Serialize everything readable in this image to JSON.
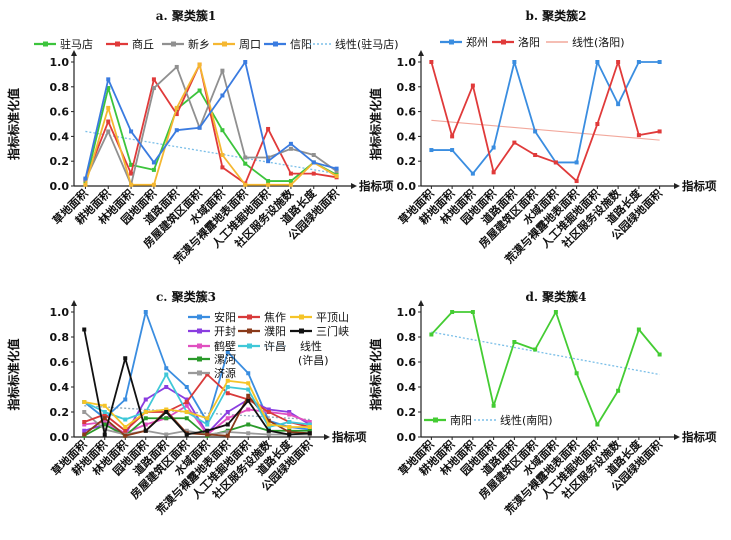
{
  "chart_data": [
    {
      "id": "a",
      "type": "line",
      "title": "a. 聚类簇1",
      "ylabel": "指标标准化值",
      "xlabel": "指标项",
      "ylim": [
        0,
        1.0
      ],
      "yticks": [
        "0.0",
        "0.2",
        "0.4",
        "0.6",
        "0.8",
        "1.0"
      ],
      "categories": [
        "草地面积",
        "耕地面积",
        "林地面积",
        "园地面积",
        "道路面积",
        "房屋建筑区面积",
        "水域面积",
        "荒漠与裸露地表面积",
        "人工堆掘地面积",
        "社区服务设施数",
        "道路长度",
        "公园绿地面积"
      ],
      "series": [
        {
          "name": "驻马店",
          "color": "#3cc43c",
          "values": [
            0.02,
            0.79,
            0.17,
            0.13,
            0.62,
            0.77,
            0.45,
            0.18,
            0.04,
            0.04,
            0.19,
            0.09
          ]
        },
        {
          "name": "商丘",
          "color": "#e03a3a",
          "values": [
            0.05,
            0.52,
            0.1,
            0.86,
            0.58,
            0.98,
            0.15,
            0.02,
            0.46,
            0.1,
            0.1,
            0.07
          ]
        },
        {
          "name": "新乡",
          "color": "#909090",
          "values": [
            0.05,
            0.44,
            0.01,
            0.79,
            0.96,
            0.47,
            0.93,
            0.23,
            0.23,
            0.3,
            0.25,
            0.12
          ]
        },
        {
          "name": "周口",
          "color": "#f5b731",
          "values": [
            0.01,
            0.63,
            0.01,
            0.01,
            0.63,
            0.98,
            0.25,
            0.01,
            0.01,
            0.01,
            0.19,
            0.08
          ]
        },
        {
          "name": "信阳",
          "color": "#3a7be0",
          "values": [
            0.06,
            0.86,
            0.44,
            0.19,
            0.45,
            0.47,
            0.73,
            1.0,
            0.2,
            0.34,
            0.19,
            0.14
          ]
        }
      ],
      "legend_order": [
        "驻马店",
        "商丘",
        "新乡",
        "周口",
        "信阳"
      ],
      "trendline": {
        "name": "线性(驻马店)",
        "style": "dotted",
        "color": "#7bbfe8",
        "from": 0.44,
        "to": 0.1
      }
    },
    {
      "id": "b",
      "type": "line",
      "title": "b. 聚类簇2",
      "ylabel": "指标标准化值",
      "xlabel": "指标项",
      "ylim": [
        0,
        1.0
      ],
      "yticks": [
        "0.0",
        "0.2",
        "0.4",
        "0.6",
        "0.8",
        "1.0"
      ],
      "categories": [
        "草地面积",
        "耕地面积",
        "林地面积",
        "园地面积",
        "道路面积",
        "房屋建筑区面积",
        "水域面积",
        "荒漠与裸露地表面积",
        "人工堆掘地面积",
        "社区服务设施数",
        "道路长度",
        "公园绿地面积"
      ],
      "series": [
        {
          "name": "郑州",
          "color": "#3a8de0",
          "values": [
            0.29,
            0.29,
            0.1,
            0.31,
            1.0,
            0.44,
            0.19,
            0.19,
            1.0,
            0.66,
            1.0,
            1.0
          ]
        },
        {
          "name": "洛阳",
          "color": "#e03a3a",
          "values": [
            1.0,
            0.4,
            0.81,
            0.11,
            0.35,
            0.25,
            0.19,
            0.04,
            0.5,
            1.0,
            0.41,
            0.44
          ]
        }
      ],
      "legend_order": [
        "郑州",
        "洛阳"
      ],
      "trendline": {
        "name": "线性(洛阳)",
        "style": "solid-thin",
        "color": "#f2a89c",
        "from": 0.53,
        "to": 0.37
      }
    },
    {
      "id": "c",
      "type": "line",
      "title": "c. 聚类簇3",
      "ylabel": "指标标准化值",
      "xlabel": "指标项",
      "ylim": [
        0,
        1.0
      ],
      "yticks": [
        "0.0",
        "0.2",
        "0.4",
        "0.6",
        "0.8",
        "1.0"
      ],
      "categories": [
        "草地面积",
        "耕地面积",
        "林地面积",
        "园地面积",
        "道路面积",
        "房屋建筑区面积",
        "水域面积",
        "荒漠与裸露地表面积",
        "人工堆掘地面积",
        "社区服务设施数",
        "道路长度",
        "公园绿地面积"
      ],
      "series": [
        {
          "name": "安阳",
          "color": "#3a8de0",
          "values": [
            0.28,
            0.15,
            0.3,
            1.0,
            0.55,
            0.4,
            0.12,
            0.68,
            0.51,
            0.13,
            0.08,
            0.06
          ]
        },
        {
          "name": "开封",
          "color": "#8a3de0",
          "values": [
            0.05,
            0.1,
            0.02,
            0.3,
            0.4,
            0.3,
            0.03,
            0.2,
            0.3,
            0.22,
            0.2,
            0.1
          ]
        },
        {
          "name": "鹤壁",
          "color": "#e050c0",
          "values": [
            0.1,
            0.12,
            0.03,
            0.1,
            0.15,
            0.25,
            0.02,
            0.15,
            0.22,
            0.2,
            0.18,
            0.12
          ]
        },
        {
          "name": "漯河",
          "color": "#2a9a2a",
          "values": [
            0.01,
            0.1,
            0.01,
            0.15,
            0.15,
            0.15,
            0.01,
            0.05,
            0.1,
            0.05,
            0.05,
            0.05
          ]
        },
        {
          "name": "济源",
          "color": "#9a9a9a",
          "values": [
            0.2,
            0.06,
            0.02,
            0.05,
            0.02,
            0.05,
            0.02,
            0.04,
            0.03,
            0.02,
            0.02,
            0.02
          ]
        },
        {
          "name": "焦作",
          "color": "#d83a3a",
          "values": [
            0.12,
            0.18,
            0.05,
            0.2,
            0.2,
            0.28,
            0.5,
            0.35,
            0.3,
            0.2,
            0.12,
            0.08
          ]
        },
        {
          "name": "濮阳",
          "color": "#8a3a1a",
          "values": [
            0.02,
            0.15,
            0.01,
            0.05,
            0.21,
            0.03,
            0.02,
            0.01,
            0.33,
            0.13,
            0.04,
            0.03
          ]
        },
        {
          "name": "许昌",
          "color": "#40c8d8",
          "values": [
            0.28,
            0.2,
            0.14,
            0.2,
            0.5,
            0.2,
            0.1,
            0.4,
            0.38,
            0.08,
            0.12,
            0.1
          ]
        },
        {
          "name": "平顶山",
          "color": "#f5c428",
          "values": [
            0.28,
            0.25,
            0.08,
            0.2,
            0.22,
            0.2,
            0.15,
            0.45,
            0.43,
            0.1,
            0.08,
            0.08
          ]
        },
        {
          "name": "三门峡",
          "color": "#111111",
          "values": [
            0.86,
            0.02,
            0.63,
            0.05,
            0.2,
            0.02,
            0.05,
            0.1,
            0.29,
            0.05,
            0.02,
            0.03
          ]
        }
      ],
      "legend_order": [
        "安阳",
        "焦作",
        "平顶山",
        "开封",
        "濮阳",
        "三门峡",
        "鹤壁",
        "许昌",
        "漯河",
        "济源"
      ],
      "trendline": {
        "name_line1": "线性",
        "name_line2": "(许昌)",
        "style": "dotted",
        "color": "#8fa8b8",
        "from": 0.25,
        "to": 0.14
      }
    },
    {
      "id": "d",
      "type": "line",
      "title": "d. 聚类簇4",
      "ylabel": "指标标准化值",
      "xlabel": "指标项",
      "ylim": [
        0,
        1.0
      ],
      "yticks": [
        "0.0",
        "0.2",
        "0.4",
        "0.6",
        "0.8",
        "1.0"
      ],
      "categories": [
        "草地面积",
        "耕地面积",
        "林地面积",
        "园地面积",
        "道路面积",
        "房屋建筑区面积",
        "水域面积",
        "荒漠与裸露地表面积",
        "人工堆掘地面积",
        "社区服务设施数",
        "道路长度",
        "公园绿地面积"
      ],
      "series": [
        {
          "name": "南阳",
          "color": "#44cc33",
          "values": [
            0.82,
            1.0,
            1.0,
            0.25,
            0.76,
            0.7,
            1.0,
            0.51,
            0.1,
            0.37,
            0.86,
            0.66
          ]
        }
      ],
      "legend_order": [
        "南阳"
      ],
      "trendline": {
        "name": "线性(南阳)",
        "style": "dotted",
        "color": "#7bbfe8",
        "from": 0.84,
        "to": 0.5
      }
    }
  ]
}
